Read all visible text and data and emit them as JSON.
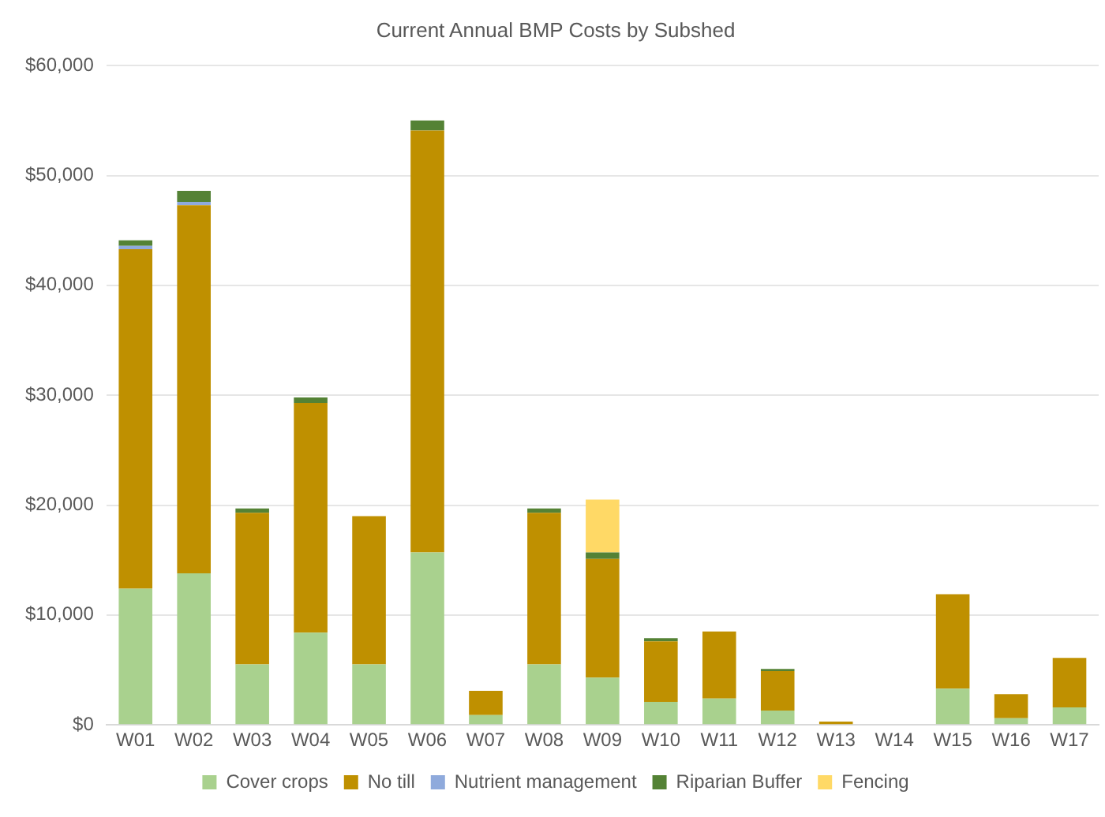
{
  "chart_data": {
    "type": "bar",
    "title": "Current Annual BMP Costs by Subshed",
    "stacked": true,
    "categories": [
      "W01",
      "W02",
      "W03",
      "W04",
      "W05",
      "W06",
      "W07",
      "W08",
      "W09",
      "W10",
      "W11",
      "W12",
      "W13",
      "W14",
      "W15",
      "W16",
      "W17"
    ],
    "series": [
      {
        "name": "Cover crops",
        "color": "#a9d18e",
        "values": [
          12400,
          13800,
          5500,
          8400,
          5500,
          15700,
          900,
          5500,
          4300,
          2100,
          2400,
          1300,
          0,
          0,
          3300,
          600,
          1600
        ]
      },
      {
        "name": "No till",
        "color": "#bf9000",
        "values": [
          30900,
          33500,
          13800,
          20900,
          13500,
          38400,
          2200,
          13800,
          10800,
          5500,
          6100,
          3600,
          300,
          0,
          8600,
          2200,
          4500
        ]
      },
      {
        "name": "Nutrient management",
        "color": "#8faadc",
        "values": [
          300,
          300,
          0,
          0,
          0,
          0,
          0,
          0,
          0,
          0,
          0,
          0,
          0,
          0,
          0,
          0,
          0
        ]
      },
      {
        "name": "Riparian Buffer",
        "color": "#548235",
        "values": [
          500,
          1000,
          400,
          500,
          0,
          900,
          0,
          400,
          600,
          300,
          0,
          200,
          0,
          0,
          0,
          0,
          0
        ]
      },
      {
        "name": "Fencing",
        "color": "#ffd966",
        "values": [
          0,
          0,
          0,
          0,
          0,
          0,
          0,
          0,
          4800,
          0,
          0,
          0,
          0,
          0,
          0,
          0,
          0
        ]
      }
    ],
    "ylim": [
      0,
      60000
    ],
    "yticks": [
      {
        "value": 0,
        "label": "$0"
      },
      {
        "value": 10000,
        "label": "$10,000"
      },
      {
        "value": 20000,
        "label": "$20,000"
      },
      {
        "value": 30000,
        "label": "$30,000"
      },
      {
        "value": 40000,
        "label": "$40,000"
      },
      {
        "value": 50000,
        "label": "$50,000"
      },
      {
        "value": 60000,
        "label": "$60,000"
      }
    ],
    "grid": "y",
    "legend": "bottom"
  }
}
